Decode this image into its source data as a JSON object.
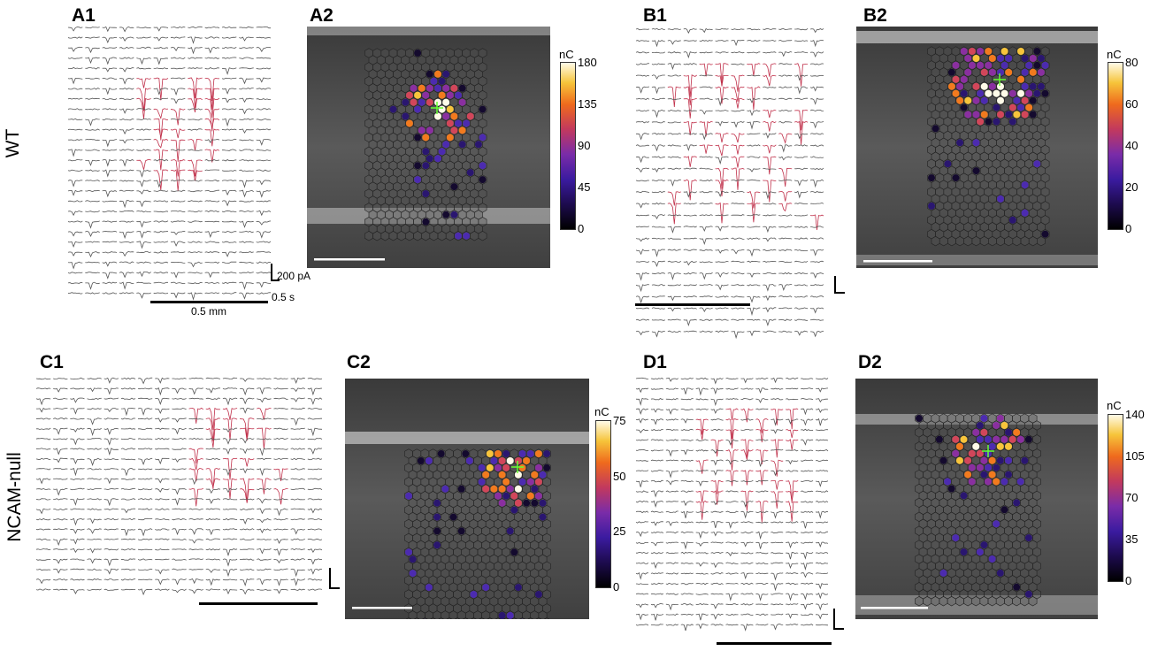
{
  "row_labels": {
    "top": "WT",
    "bottom": "NCAM-null"
  },
  "panels": {
    "A1": "A1",
    "A2": "A2",
    "B1": "B1",
    "B2": "B2",
    "C1": "C1",
    "C2": "C2",
    "D1": "D1",
    "D2": "D2"
  },
  "scale": {
    "current": "200 pA",
    "time": "0.5 s",
    "distance": "0.5 mm"
  },
  "colorbars": {
    "A2": {
      "unit": "nC",
      "ticks": [
        "180",
        "135",
        "90",
        "45",
        "0"
      ]
    },
    "B2": {
      "unit": "nC",
      "ticks": [
        "80",
        "60",
        "40",
        "20",
        "0"
      ]
    },
    "C2": {
      "unit": "nC",
      "ticks": [
        "75",
        "50",
        "25",
        "0"
      ]
    },
    "D2": {
      "unit": "nC",
      "ticks": [
        "140",
        "105",
        "70",
        "35",
        "0"
      ]
    }
  },
  "colors": {
    "trace": "#555555",
    "trace_highlight": "#c0304a",
    "trace_blue": "#6a8fb8",
    "marker": "#66ff33"
  }
}
